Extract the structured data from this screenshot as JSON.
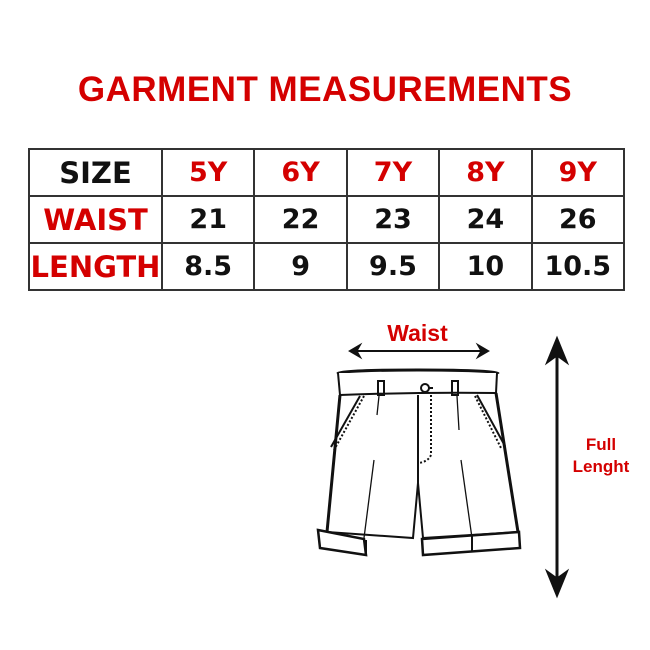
{
  "title": "GARMENT MEASUREMENTS",
  "table": {
    "header_label": "SIZE",
    "sizes": [
      "5Y",
      "6Y",
      "7Y",
      "8Y",
      "9Y"
    ],
    "rows": [
      {
        "label": "WAIST",
        "values": [
          "21",
          "22",
          "23",
          "24",
          "26"
        ]
      },
      {
        "label": "LENGTH",
        "values": [
          "8.5",
          "9",
          "9.5",
          "10",
          "10.5"
        ]
      }
    ]
  },
  "diagram": {
    "waist_label": "Waist",
    "length_label_line1": "Full",
    "length_label_line2": "Lenght",
    "icon": "shorts-illustration"
  },
  "colors": {
    "accent": "#d40000",
    "text": "#111111"
  }
}
